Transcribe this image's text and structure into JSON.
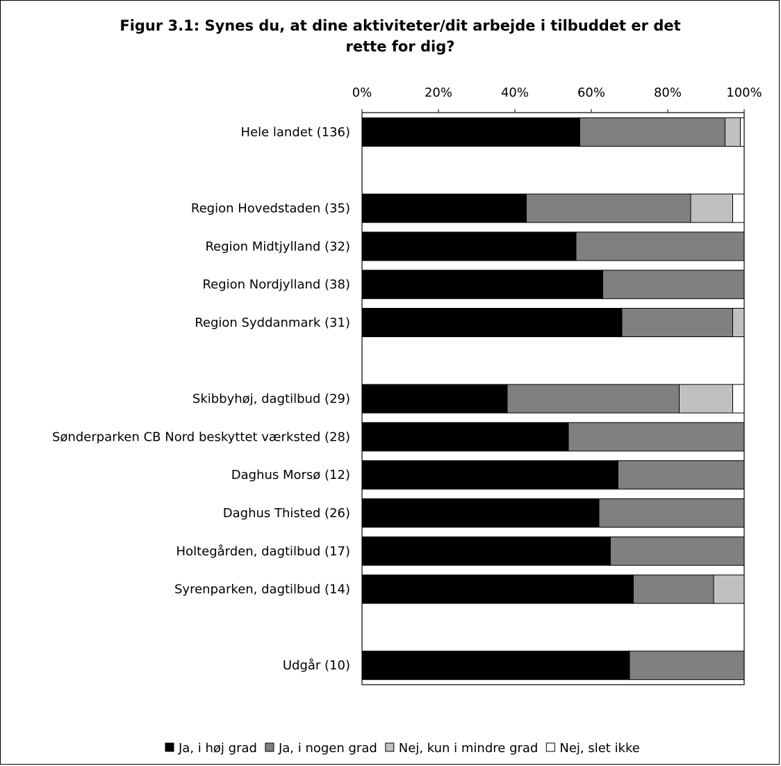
{
  "chart_data": {
    "type": "bar",
    "orientation": "horizontal",
    "stacked": "percent",
    "title_lines": [
      "Figur 3.1: Synes du, at dine aktiviteter/dit arbejde i tilbuddet er det",
      "rette for dig?"
    ],
    "xlim": [
      0,
      100
    ],
    "x_ticks": [
      "0%",
      "20%",
      "40%",
      "60%",
      "80%",
      "100%"
    ],
    "x_axis_position": "top",
    "grid": false,
    "legend_position": "bottom",
    "categories": [
      "Hele landet (136)",
      "",
      "Region Hovedstaden (35)",
      "Region Midtjylland (32)",
      "Region Nordjylland (38)",
      "Region Syddanmark (31)",
      "",
      "Skibbyhøj, dagtilbud (29)",
      "Sønderparken CB Nord beskyttet værksted (28)",
      "Daghus Morsø (12)",
      "Daghus Thisted (26)",
      "Holtegården, dagtilbud (17)",
      "Syrenparken, dagtilbud (14)",
      "",
      "Udgår (10)"
    ],
    "series": [
      {
        "name": "Ja, i høj grad",
        "color": "#000000",
        "values": [
          57,
          null,
          43,
          56,
          63,
          68,
          null,
          38,
          54,
          67,
          62,
          65,
          71,
          null,
          70
        ]
      },
      {
        "name": "Ja, i nogen grad",
        "color": "#808080",
        "values": [
          38,
          null,
          43,
          44,
          37,
          29,
          null,
          45,
          46,
          33,
          38,
          35,
          21,
          null,
          30
        ]
      },
      {
        "name": "Nej, kun i mindre grad",
        "color": "#c0c0c0",
        "values": [
          4,
          null,
          11,
          0,
          0,
          3,
          null,
          14,
          0,
          0,
          0,
          0,
          8,
          null,
          0
        ]
      },
      {
        "name": "Nej, slet ikke",
        "color": "#ffffff",
        "values": [
          1,
          null,
          3,
          0,
          0,
          0,
          null,
          3,
          0,
          0,
          0,
          0,
          0,
          null,
          0
        ]
      }
    ]
  }
}
